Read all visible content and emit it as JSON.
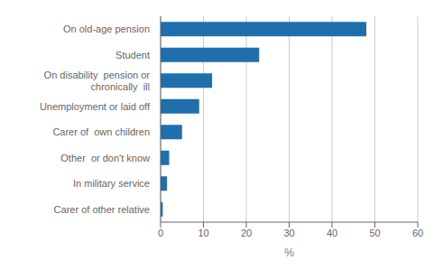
{
  "chart_data": {
    "type": "bar",
    "orientation": "horizontal",
    "categories": [
      "Carer of other relative",
      "In military service",
      "Other  or don't know",
      "Carer of  own children",
      "Unemployment or laid off",
      "On disability  pension or\nchronically  ill",
      "Student",
      "On old-age pension"
    ],
    "values": [
      0.5,
      1.5,
      2.0,
      5.0,
      9.0,
      12.0,
      23.0,
      48.0
    ],
    "color": "#1f6fad",
    "xlim": [
      0,
      60
    ],
    "xticks": [
      0,
      10,
      20,
      30,
      40,
      50,
      60
    ],
    "xlabel": "%",
    "grid": true
  }
}
